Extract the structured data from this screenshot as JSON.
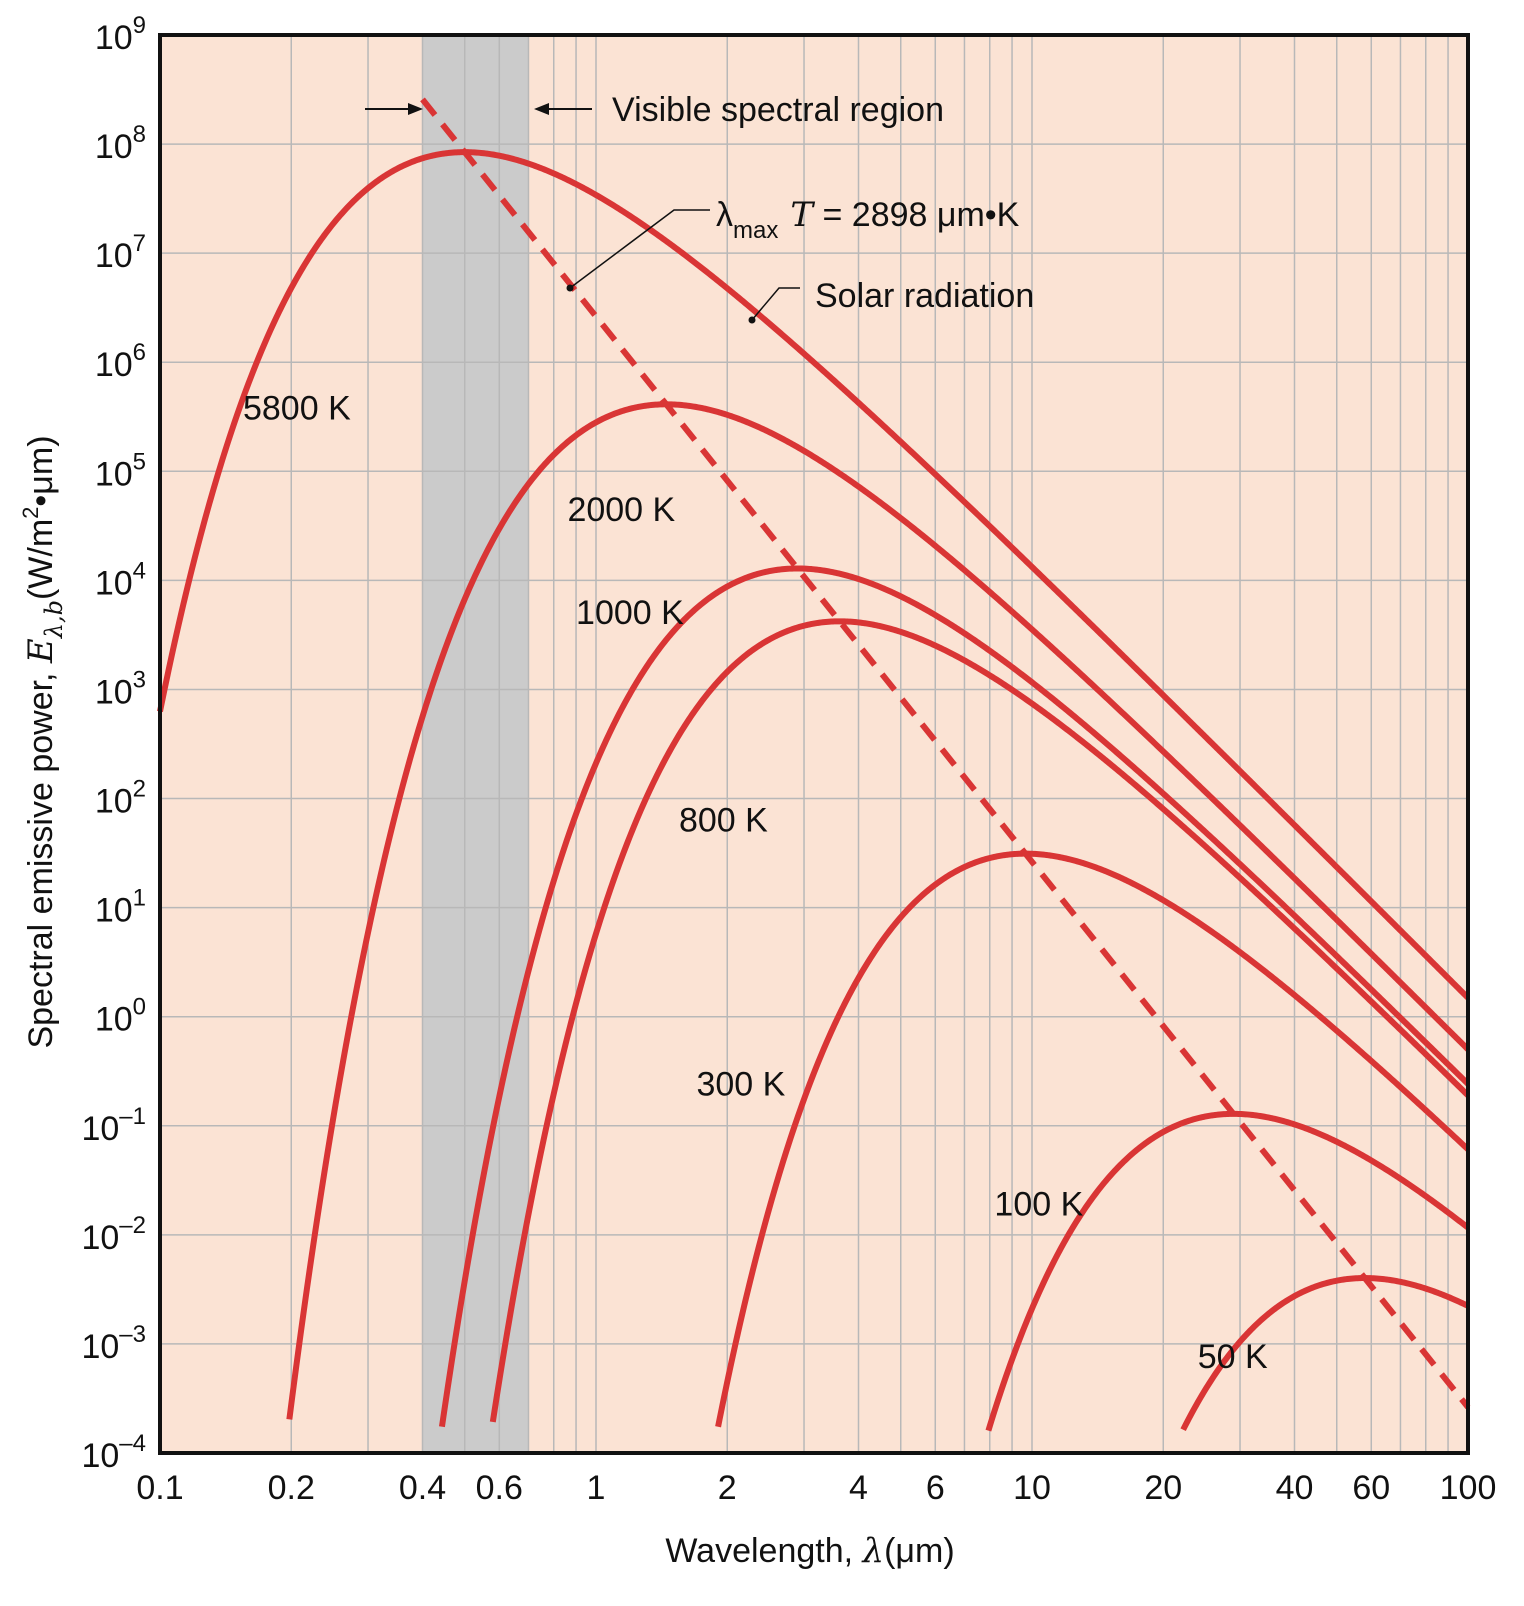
{
  "chart_data": {
    "type": "line",
    "xscale": "log",
    "yscale": "log",
    "xlim": [
      0.1,
      100
    ],
    "ylim": [
      0.0001,
      1000000000
    ],
    "grid": true,
    "xlabel_prefix": "Wavelength, ",
    "xlabel_symbol": "λ",
    "xlabel_units": "(μm)",
    "ylabel_prefix": "Spectral emissive power, ",
    "ylabel_symbol": "E",
    "ylabel_subscript": "λ,b",
    "ylabel_units_a": "(W/m",
    "ylabel_units_sup": "2",
    "ylabel_units_b": "•μm)",
    "x_ticks": [
      {
        "value": 0.1,
        "label": "0.1"
      },
      {
        "value": 0.2,
        "label": "0.2"
      },
      {
        "value": 0.4,
        "label": "0.4"
      },
      {
        "value": 0.6,
        "label": "0.6"
      },
      {
        "value": 1,
        "label": "1"
      },
      {
        "value": 2,
        "label": "2"
      },
      {
        "value": 4,
        "label": "4"
      },
      {
        "value": 6,
        "label": "6"
      },
      {
        "value": 10,
        "label": "10"
      },
      {
        "value": 20,
        "label": "20"
      },
      {
        "value": 40,
        "label": "40"
      },
      {
        "value": 60,
        "label": "60"
      },
      {
        "value": 100,
        "label": "100"
      }
    ],
    "y_ticks": [
      {
        "exp": 9,
        "base": "10",
        "sup": "9"
      },
      {
        "exp": 8,
        "base": "10",
        "sup": "8"
      },
      {
        "exp": 7,
        "base": "10",
        "sup": "7"
      },
      {
        "exp": 6,
        "base": "10",
        "sup": "6"
      },
      {
        "exp": 5,
        "base": "10",
        "sup": "5"
      },
      {
        "exp": 4,
        "base": "10",
        "sup": "4"
      },
      {
        "exp": 3,
        "base": "10",
        "sup": "3"
      },
      {
        "exp": 2,
        "base": "10",
        "sup": "2"
      },
      {
        "exp": 1,
        "base": "10",
        "sup": "1"
      },
      {
        "exp": 0,
        "base": "10",
        "sup": "0"
      },
      {
        "exp": -1,
        "base": "10",
        "sup": "–1"
      },
      {
        "exp": -2,
        "base": "10",
        "sup": "–2"
      },
      {
        "exp": -3,
        "base": "10",
        "sup": "–3"
      },
      {
        "exp": -4,
        "base": "10",
        "sup": "–4"
      }
    ],
    "series": [
      {
        "name": "5800 K",
        "temperature": 5800
      },
      {
        "name": "2000 K",
        "temperature": 2000
      },
      {
        "name": "1000 K",
        "temperature": 1000
      },
      {
        "name": "800 K",
        "temperature": 800
      },
      {
        "name": "300 K",
        "temperature": 300
      },
      {
        "name": "100 K",
        "temperature": 100
      },
      {
        "name": "50 K",
        "temperature": 50
      }
    ],
    "visible_region": [
      0.4,
      0.7
    ],
    "wien_line": {
      "constant": 2898,
      "x_range": [
        0.4,
        100
      ]
    },
    "annotations": {
      "visible": "Visible spectral region",
      "wien_symbol": "λ",
      "wien_sub": "max",
      "wien_T": "T",
      "wien_rest": " = 2898 μm•K",
      "solar": "Solar radiation"
    }
  },
  "colors": {
    "background": "#fbe3d4",
    "curve": "#d93535",
    "visible_band": "#cbcbcb",
    "grid": "#b8b8b8",
    "frame": "#111111"
  }
}
